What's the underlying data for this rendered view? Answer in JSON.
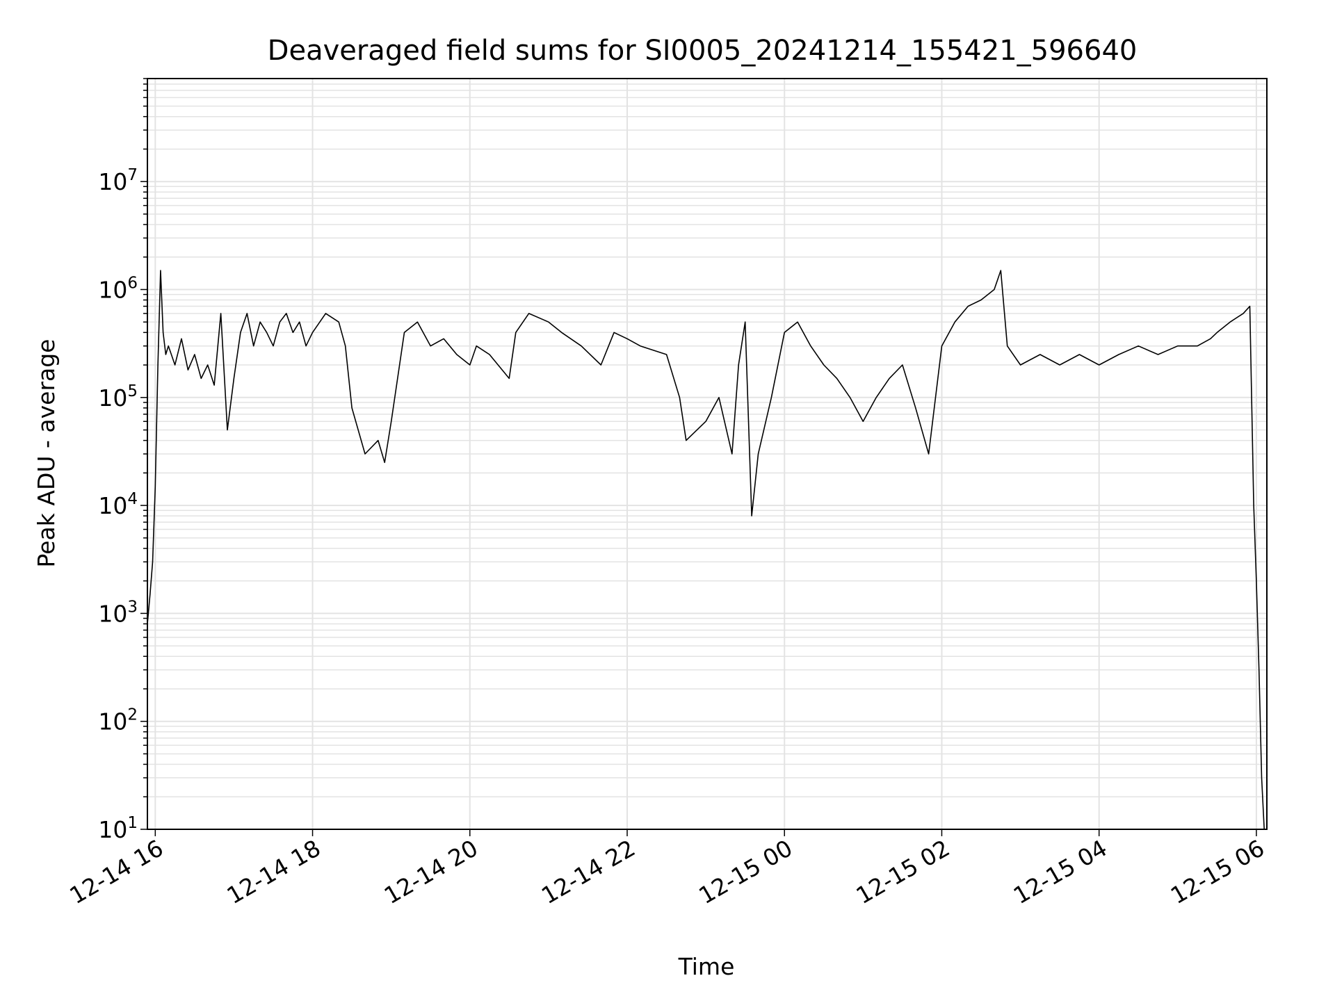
{
  "chart_data": {
    "type": "line",
    "title": "Deaveraged field sums for SI0005_20241214_155421_596640",
    "xlabel": "Time",
    "ylabel": "Peak ADU - average",
    "yscale": "log",
    "ylim": [
      10,
      90000000
    ],
    "xlim": [
      "2024-12-14 15:54",
      "2024-12-15 06:08"
    ],
    "grid": true,
    "line_color": "#000000",
    "grid_color": "#e3e3e3",
    "x_ticks": [
      {
        "value": "2024-12-14 16:00",
        "label": "12-14 16"
      },
      {
        "value": "2024-12-14 18:00",
        "label": "12-14 18"
      },
      {
        "value": "2024-12-14 20:00",
        "label": "12-14 20"
      },
      {
        "value": "2024-12-14 22:00",
        "label": "12-14 22"
      },
      {
        "value": "2024-12-15 00:00",
        "label": "12-15 00"
      },
      {
        "value": "2024-12-15 02:00",
        "label": "12-15 02"
      },
      {
        "value": "2024-12-15 04:00",
        "label": "12-15 04"
      },
      {
        "value": "2024-12-15 06:00",
        "label": "12-15 06"
      }
    ],
    "y_ticks": [
      {
        "value": 10,
        "base": "10",
        "exp": "1"
      },
      {
        "value": 100,
        "base": "10",
        "exp": "2"
      },
      {
        "value": 1000,
        "base": "10",
        "exp": "3"
      },
      {
        "value": 10000,
        "base": "10",
        "exp": "4"
      },
      {
        "value": 100000,
        "base": "10",
        "exp": "5"
      },
      {
        "value": 1000000,
        "base": "10",
        "exp": "6"
      },
      {
        "value": 10000000,
        "base": "10",
        "exp": "7"
      }
    ],
    "series": [
      {
        "x": [
          "2024-12-14 15:54",
          "2024-12-14 15:56",
          "2024-12-14 15:58",
          "2024-12-14 16:00",
          "2024-12-14 16:02",
          "2024-12-14 16:04",
          "2024-12-14 16:06",
          "2024-12-14 16:08",
          "2024-12-14 16:10",
          "2024-12-14 16:15",
          "2024-12-14 16:20",
          "2024-12-14 16:25",
          "2024-12-14 16:30",
          "2024-12-14 16:35",
          "2024-12-14 16:40",
          "2024-12-14 16:45",
          "2024-12-14 16:50",
          "2024-12-14 16:55",
          "2024-12-14 17:00",
          "2024-12-14 17:05",
          "2024-12-14 17:10",
          "2024-12-14 17:15",
          "2024-12-14 17:20",
          "2024-12-14 17:25",
          "2024-12-14 17:30",
          "2024-12-14 17:35",
          "2024-12-14 17:40",
          "2024-12-14 17:45",
          "2024-12-14 17:50",
          "2024-12-14 17:55",
          "2024-12-14 18:00",
          "2024-12-14 18:10",
          "2024-12-14 18:20",
          "2024-12-14 18:25",
          "2024-12-14 18:30",
          "2024-12-14 18:40",
          "2024-12-14 18:50",
          "2024-12-14 18:55",
          "2024-12-14 19:00",
          "2024-12-14 19:10",
          "2024-12-14 19:20",
          "2024-12-14 19:30",
          "2024-12-14 19:40",
          "2024-12-14 19:50",
          "2024-12-14 20:00",
          "2024-12-14 20:05",
          "2024-12-14 20:15",
          "2024-12-14 20:30",
          "2024-12-14 20:35",
          "2024-12-14 20:45",
          "2024-12-14 21:00",
          "2024-12-14 21:10",
          "2024-12-14 21:25",
          "2024-12-14 21:40",
          "2024-12-14 21:50",
          "2024-12-14 22:00",
          "2024-12-14 22:10",
          "2024-12-14 22:30",
          "2024-12-14 22:40",
          "2024-12-14 22:45",
          "2024-12-14 23:00",
          "2024-12-14 23:10",
          "2024-12-14 23:20",
          "2024-12-14 23:25",
          "2024-12-14 23:30",
          "2024-12-14 23:35",
          "2024-12-14 23:40",
          "2024-12-14 23:50",
          "2024-12-15 00:00",
          "2024-12-15 00:10",
          "2024-12-15 00:20",
          "2024-12-15 00:30",
          "2024-12-15 00:40",
          "2024-12-15 00:50",
          "2024-12-15 01:00",
          "2024-12-15 01:10",
          "2024-12-15 01:20",
          "2024-12-15 01:30",
          "2024-12-15 01:40",
          "2024-12-15 01:50",
          "2024-12-15 02:00",
          "2024-12-15 02:10",
          "2024-12-15 02:20",
          "2024-12-15 02:30",
          "2024-12-15 02:40",
          "2024-12-15 02:45",
          "2024-12-15 02:50",
          "2024-12-15 03:00",
          "2024-12-15 03:15",
          "2024-12-15 03:30",
          "2024-12-15 03:45",
          "2024-12-15 04:00",
          "2024-12-15 04:15",
          "2024-12-15 04:30",
          "2024-12-15 04:45",
          "2024-12-15 05:00",
          "2024-12-15 05:15",
          "2024-12-15 05:25",
          "2024-12-15 05:30",
          "2024-12-15 05:40",
          "2024-12-15 05:50",
          "2024-12-15 05:55",
          "2024-12-15 05:58",
          "2024-12-15 06:00",
          "2024-12-15 06:02",
          "2024-12-15 06:04",
          "2024-12-15 06:06"
        ],
        "y": [
          800,
          1500,
          3000,
          15000,
          200000,
          1500000,
          400000,
          250000,
          300000,
          200000,
          350000,
          180000,
          250000,
          150000,
          200000,
          130000,
          600000,
          50000,
          150000,
          400000,
          600000,
          300000,
          500000,
          400000,
          300000,
          500000,
          600000,
          400000,
          500000,
          300000,
          400000,
          600000,
          500000,
          300000,
          80000,
          30000,
          40000,
          25000,
          60000,
          400000,
          500000,
          300000,
          350000,
          250000,
          200000,
          300000,
          250000,
          150000,
          400000,
          600000,
          500000,
          400000,
          300000,
          200000,
          400000,
          350000,
          300000,
          250000,
          100000,
          40000,
          60000,
          100000,
          30000,
          200000,
          500000,
          8000,
          30000,
          100000,
          400000,
          500000,
          300000,
          200000,
          150000,
          100000,
          60000,
          100000,
          150000,
          200000,
          80000,
          30000,
          300000,
          500000,
          700000,
          800000,
          1000000,
          1500000,
          300000,
          200000,
          250000,
          200000,
          250000,
          200000,
          250000,
          300000,
          250000,
          300000,
          300000,
          350000,
          400000,
          500000,
          600000,
          700000,
          10000,
          2000,
          300,
          30,
          10
        ]
      }
    ]
  }
}
